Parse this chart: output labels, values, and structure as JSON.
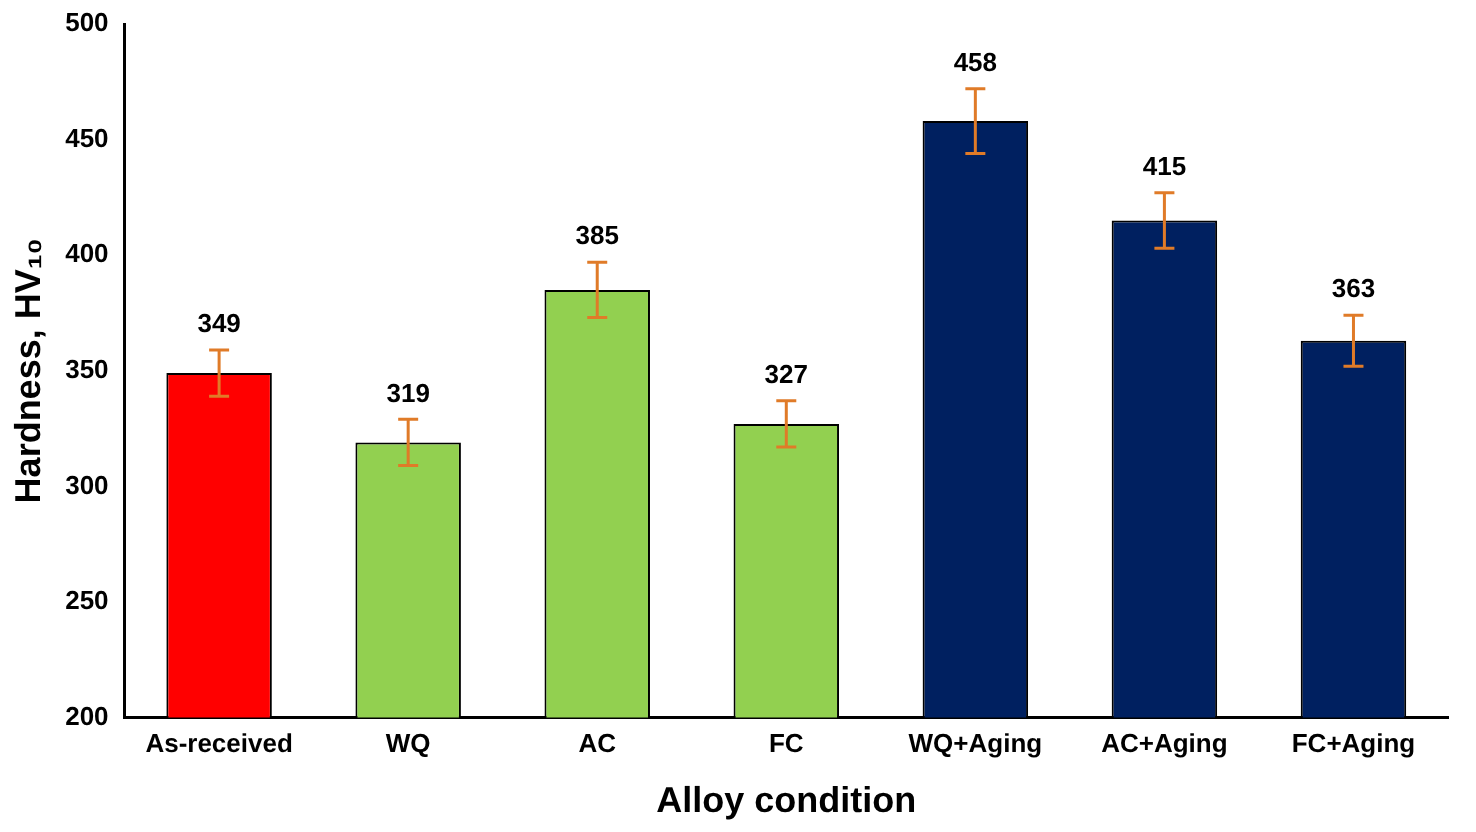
{
  "chart_data": {
    "type": "bar",
    "xlabel": "Alloy condition",
    "ylabel": "Hardness, HV₁₀",
    "categories": [
      "As-received",
      "WQ",
      "AC",
      "FC",
      "WQ+Aging",
      "AC+Aging",
      "FC+Aging"
    ],
    "values": [
      349,
      319,
      385,
      327,
      458,
      415,
      363
    ],
    "colors": [
      "#ff0000",
      "#92d050",
      "#92d050",
      "#92d050",
      "#002060",
      "#002060",
      "#002060"
    ],
    "errors": [
      10,
      10,
      12,
      10,
      14,
      12,
      11
    ],
    "ylim": [
      200,
      500
    ],
    "yticks": [
      200,
      250,
      300,
      350,
      400,
      450,
      500
    ],
    "data_labels": true,
    "grid": false,
    "legend": false
  }
}
